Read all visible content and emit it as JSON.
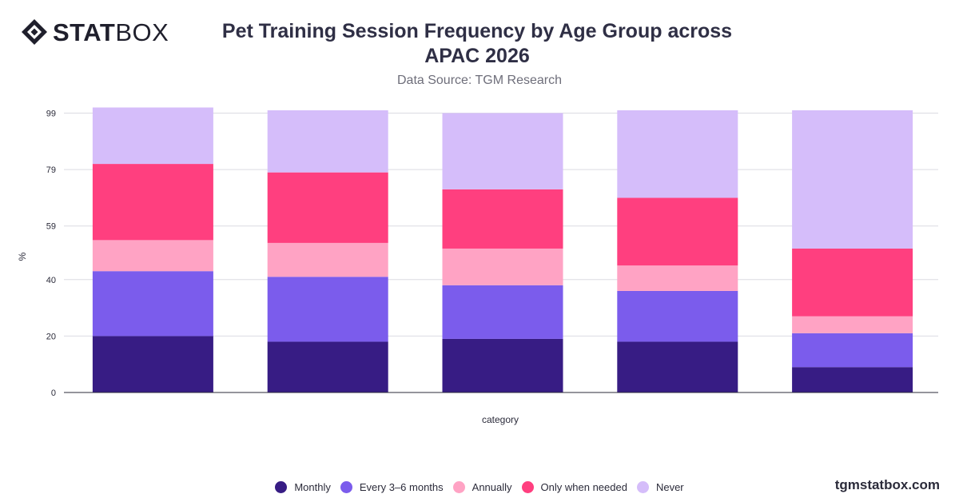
{
  "brand": {
    "logo_icon": "diamond-logo-icon",
    "logo_bold": "STAT",
    "logo_light": "BOX"
  },
  "footer": {
    "site": "tgmstatbox.com"
  },
  "chart_data": {
    "type": "bar",
    "stacked": true,
    "title": "Pet Training Session Frequency by Age Group across APAC 2026",
    "subtitle": "Data Source: TGM Research",
    "xlabel": "category",
    "ylabel": "%",
    "ylim": [
      0,
      100
    ],
    "yticks": [
      0,
      20,
      40,
      59,
      79,
      99
    ],
    "categories": [
      "",
      "",
      "",
      "",
      ""
    ],
    "grid": true,
    "legend_position": "bottom",
    "series": [
      {
        "name": "Monthly",
        "color": "#371c84",
        "values": [
          20,
          18,
          19,
          18,
          9
        ]
      },
      {
        "name": "Every 3–6 months",
        "color": "#7b5cec",
        "values": [
          23,
          23,
          19,
          18,
          12
        ]
      },
      {
        "name": "Annually",
        "color": "#ffa3c4",
        "values": [
          11,
          12,
          13,
          9,
          6
        ]
      },
      {
        "name": "Only when needed",
        "color": "#ff3f7f",
        "values": [
          27,
          25,
          21,
          24,
          24
        ]
      },
      {
        "name": "Never",
        "color": "#d5bdfa",
        "values": [
          20,
          22,
          27,
          31,
          49
        ]
      }
    ]
  }
}
